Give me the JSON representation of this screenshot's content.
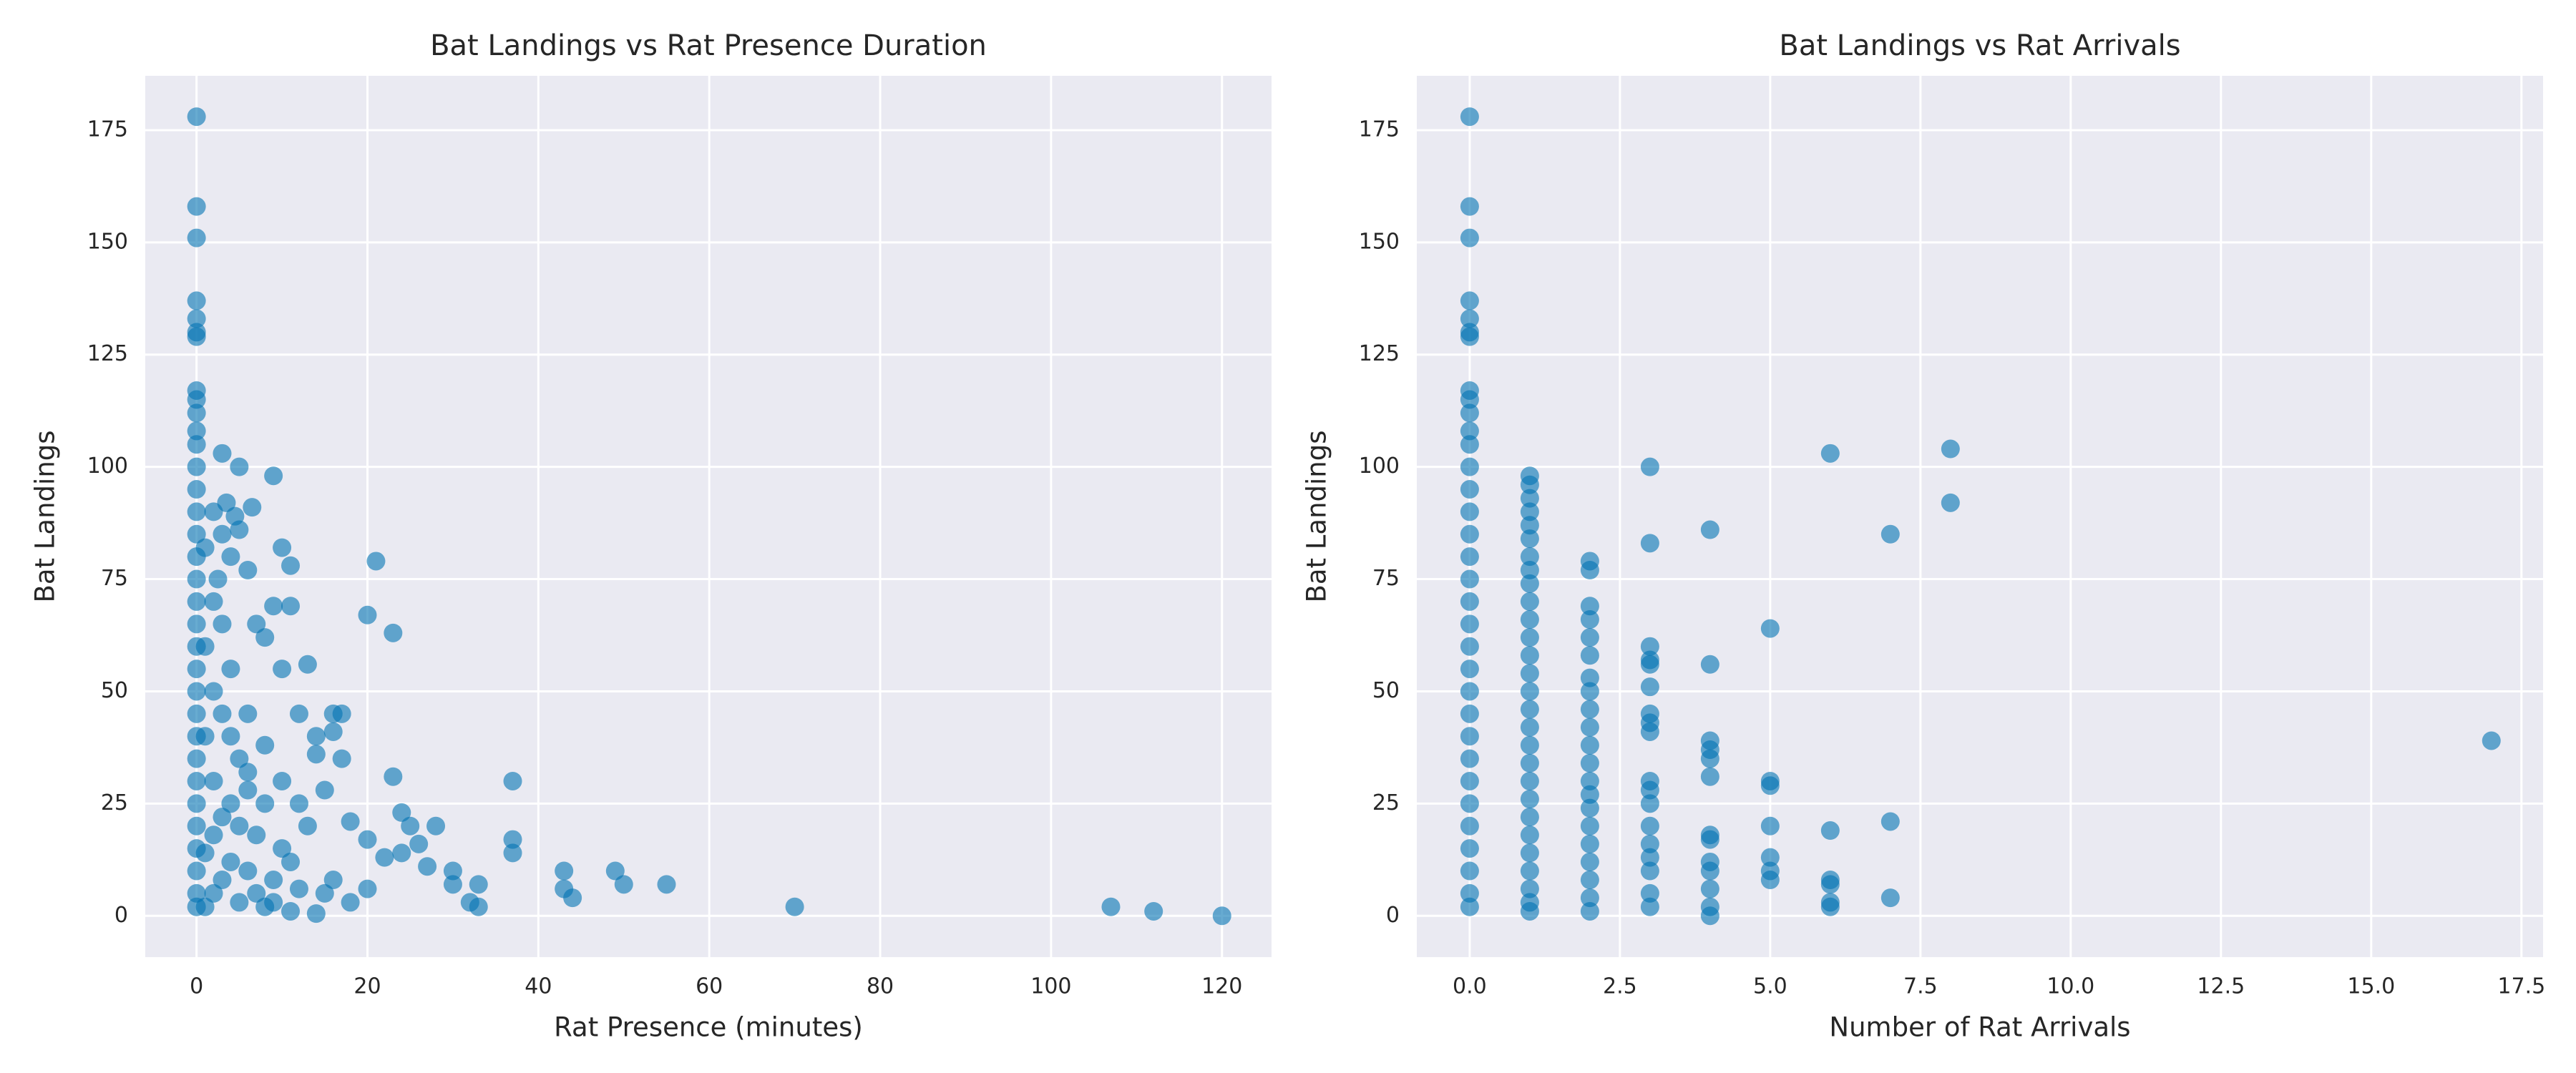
{
  "chart_data": [
    {
      "type": "scatter",
      "title": "Bat Landings vs Rat Presence Duration",
      "x_label": "Rat Presence (minutes)",
      "y_label": "Bat Landings",
      "color": "#0173b2",
      "alpha": 0.6,
      "grid": true,
      "xlim": [
        -6,
        125.8
      ],
      "ylim": [
        -9.2,
        187.1
      ],
      "xticks": [
        0,
        20,
        40,
        60,
        80,
        100,
        120
      ],
      "yticks": [
        0,
        25,
        50,
        75,
        100,
        125,
        150,
        175
      ],
      "x": [
        0,
        0,
        0,
        0,
        0,
        0,
        0,
        0,
        0,
        0,
        0,
        0,
        0,
        0,
        0,
        0,
        0,
        0,
        0,
        0,
        0,
        0,
        0,
        0,
        0,
        0,
        0,
        0,
        0,
        0,
        0,
        0,
        0,
        3,
        5,
        9,
        3.5,
        6.5,
        4.5,
        5,
        3,
        10,
        4,
        21,
        11,
        6,
        2.5,
        20,
        11,
        9,
        23,
        13,
        10,
        7,
        8,
        12,
        16,
        17,
        16,
        14,
        14,
        17,
        23,
        37,
        18,
        20,
        25,
        28,
        37,
        37,
        26,
        24,
        22,
        24,
        30,
        27,
        30,
        32,
        33,
        33,
        43,
        43,
        44,
        49,
        50,
        55,
        70,
        107,
        112,
        120,
        1,
        2,
        3,
        4,
        5,
        2,
        6,
        8,
        3,
        5,
        7,
        10,
        1,
        4,
        6,
        9,
        12,
        2,
        15,
        18,
        8,
        11,
        14,
        20,
        16,
        1,
        2,
        4,
        6,
        8,
        10,
        12,
        15,
        13,
        11,
        9,
        5,
        3,
        7,
        1,
        2,
        4,
        6,
        3,
        1,
        2
      ],
      "y": [
        178,
        158,
        151,
        137,
        133,
        130,
        129,
        117,
        115,
        112,
        108,
        105,
        100,
        95,
        90,
        85,
        80,
        75,
        70,
        65,
        60,
        55,
        50,
        45,
        40,
        35,
        30,
        25,
        20,
        15,
        10,
        5,
        2,
        103,
        100,
        98,
        92,
        91,
        89,
        86,
        85,
        82,
        80,
        79,
        78,
        77,
        75,
        67,
        69,
        69,
        63,
        56,
        55,
        65,
        62,
        45,
        45,
        45,
        41,
        40,
        36,
        35,
        31,
        30,
        21,
        17,
        20,
        20,
        17,
        14,
        16,
        23,
        13,
        14,
        10,
        11,
        7,
        3,
        7,
        2,
        10,
        6,
        4,
        10,
        7,
        7,
        2,
        2,
        1,
        0,
        60,
        50,
        45,
        40,
        35,
        30,
        28,
        25,
        22,
        20,
        18,
        15,
        14,
        12,
        10,
        8,
        6,
        5,
        5,
        3,
        2,
        1,
        0.5,
        6,
        8,
        40,
        70,
        55,
        45,
        38,
        30,
        25,
        28,
        20,
        12,
        3,
        3,
        8,
        5,
        2,
        18,
        25,
        32,
        65,
        82,
        90
      ]
    },
    {
      "type": "scatter",
      "title": "Bat Landings vs Rat Arrivals",
      "x_label": "Number of Rat Arrivals",
      "y_label": "Bat Landings",
      "color": "#0173b2",
      "alpha": 0.6,
      "grid": true,
      "xlim": [
        -0.88,
        17.86
      ],
      "ylim": [
        -9.2,
        187.1
      ],
      "xticks": [
        {
          "value": 0,
          "label": "0.0"
        },
        2.5,
        {
          "value": 5,
          "label": "5.0"
        },
        7.5,
        {
          "value": 10,
          "label": "10.0"
        },
        12.5,
        {
          "value": 15,
          "label": "15.0"
        },
        17.5
      ],
      "yticks": [
        0,
        25,
        50,
        75,
        100,
        125,
        150,
        175
      ],
      "x": [
        0,
        0,
        0,
        0,
        0,
        0,
        0,
        0,
        0,
        0,
        0,
        0,
        0,
        0,
        0,
        0,
        0,
        0,
        0,
        0,
        0,
        0,
        0,
        0,
        0,
        0,
        0,
        0,
        0,
        0,
        0,
        0,
        0,
        1,
        1,
        1,
        1,
        1,
        1,
        1,
        1,
        1,
        1,
        1,
        1,
        1,
        1,
        1,
        1,
        1,
        1,
        1,
        1,
        1,
        1,
        1,
        1,
        1,
        1,
        1,
        1,
        2,
        2,
        2,
        2,
        2,
        2,
        2,
        2,
        2,
        2,
        2,
        2,
        2,
        2,
        2,
        2,
        2,
        2,
        2,
        2,
        2,
        3,
        3,
        3,
        3,
        3,
        3,
        3,
        3,
        3,
        3,
        3,
        3,
        3,
        3,
        3,
        3,
        3,
        3,
        4,
        4,
        4,
        4,
        4,
        4,
        4,
        4,
        4,
        4,
        4,
        4,
        4,
        5,
        5,
        5,
        5,
        5,
        5,
        5,
        6,
        6,
        6,
        6,
        6,
        6,
        7,
        7,
        7,
        8,
        8,
        17
      ],
      "y": [
        178,
        158,
        151,
        137,
        133,
        130,
        129,
        117,
        115,
        112,
        108,
        105,
        100,
        95,
        90,
        85,
        80,
        75,
        70,
        65,
        60,
        55,
        50,
        45,
        40,
        35,
        30,
        25,
        20,
        15,
        10,
        5,
        2,
        98,
        96,
        93,
        90,
        87,
        84,
        80,
        77,
        74,
        70,
        66,
        62,
        58,
        54,
        50,
        46,
        42,
        38,
        34,
        30,
        26,
        22,
        18,
        14,
        10,
        6,
        3,
        1,
        79,
        77,
        69,
        66,
        62,
        58,
        53,
        50,
        46,
        42,
        38,
        34,
        30,
        27,
        24,
        20,
        16,
        12,
        8,
        4,
        1,
        100,
        83,
        60,
        57,
        56,
        51,
        45,
        43,
        41,
        30,
        28,
        25,
        20,
        16,
        13,
        10,
        5,
        2,
        86,
        56,
        39,
        37,
        35,
        31,
        18,
        17,
        12,
        10,
        6,
        2,
        0,
        64,
        30,
        29,
        20,
        13,
        10,
        8,
        103,
        19,
        8,
        7,
        3,
        2,
        85,
        21,
        4,
        104,
        92,
        39
      ]
    }
  ]
}
